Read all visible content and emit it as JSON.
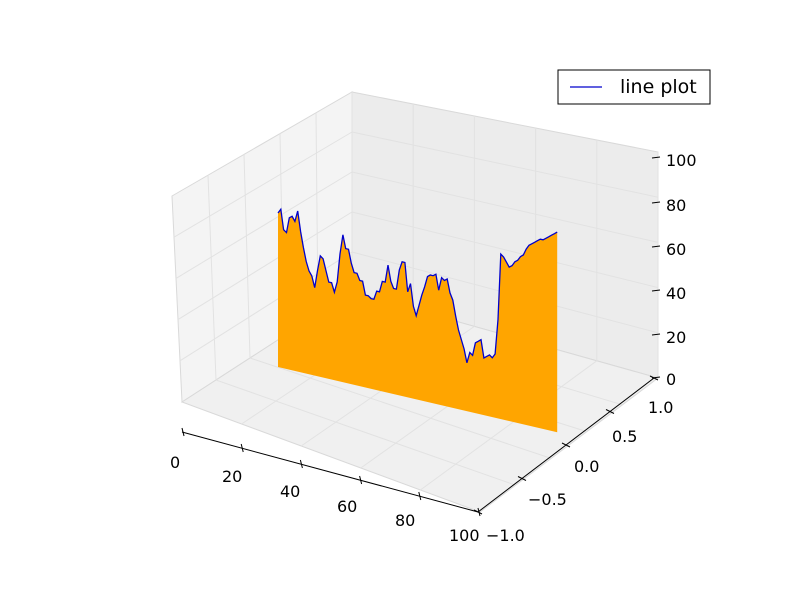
{
  "chart_data": {
    "type": "area",
    "projection": "3d",
    "x_ticks": [
      "0",
      "20",
      "40",
      "60",
      "80",
      "100"
    ],
    "y_ticks": [
      "−1.0",
      "−0.5",
      "0.0",
      "0.5",
      "1.0"
    ],
    "z_ticks": [
      "0",
      "20",
      "40",
      "60",
      "80",
      "100"
    ],
    "xlim": [
      0,
      100
    ],
    "ylim": [
      -1,
      1
    ],
    "zlim": [
      0,
      100
    ],
    "grid": true,
    "legend": {
      "location": "upper-right",
      "entries": [
        "line plot"
      ]
    },
    "series": [
      {
        "name": "line plot",
        "y_const": 0,
        "line_color": "#0000cc",
        "fill_color": "#ffa500",
        "x": [
          0,
          1,
          2,
          3,
          4,
          5,
          6,
          7,
          8,
          9,
          10,
          11,
          12,
          13,
          14,
          15,
          16,
          17,
          18,
          19,
          20,
          21,
          22,
          23,
          24,
          25,
          26,
          27,
          28,
          29,
          30,
          31,
          32,
          33,
          34,
          35,
          36,
          37,
          38,
          39,
          40,
          41,
          42,
          43,
          44,
          45,
          46,
          47,
          48,
          49,
          50,
          51,
          52,
          53,
          54,
          55,
          56,
          57,
          58,
          59,
          60,
          61,
          62,
          63,
          64,
          65,
          66,
          67,
          68,
          69,
          70,
          71,
          72,
          73,
          74,
          75,
          76,
          77,
          78,
          79,
          80,
          81,
          82,
          83,
          84,
          85,
          86,
          87,
          88,
          89,
          90,
          91,
          92,
          93,
          94,
          95,
          96,
          97,
          98,
          99
        ],
        "z": [
          70,
          72,
          63,
          62,
          69,
          70,
          68,
          73,
          64,
          57,
          51,
          47,
          45,
          40,
          48,
          55,
          54,
          49,
          44,
          44,
          40,
          45,
          58,
          67,
          61,
          61,
          55,
          51,
          51,
          48,
          48,
          42,
          42,
          41,
          41,
          45,
          45,
          50,
          50,
          58,
          51,
          48,
          48,
          57,
          61,
          61,
          48,
          52,
          42,
          38,
          43,
          48,
          52,
          57,
          58,
          58,
          59,
          52,
          58,
          57,
          58,
          52,
          49,
          42,
          36,
          32,
          28,
          22,
          27,
          26,
          32,
          33,
          34,
          26,
          27,
          28,
          27,
          29,
          45,
          75,
          74,
          72,
          70,
          71,
          73,
          74,
          76,
          77,
          80,
          82,
          83,
          84,
          85,
          86,
          86,
          87,
          88,
          89,
          90,
          91
        ]
      }
    ]
  }
}
